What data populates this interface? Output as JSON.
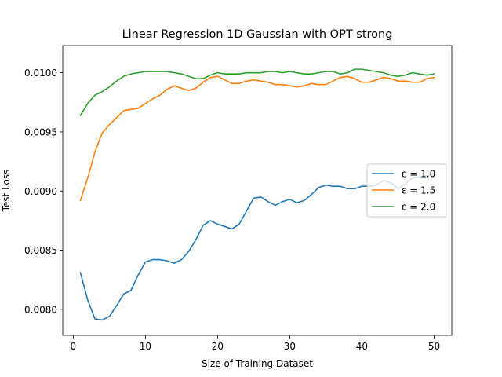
{
  "chart_data": {
    "type": "line",
    "title": "Linear Regression 1D Gaussian with OPT strong",
    "xlabel": "Size of Training Dataset",
    "ylabel": "Test Loss",
    "xlim": [
      -1.45,
      52.45
    ],
    "ylim": [
      0.00778,
      0.01023
    ],
    "xticks": [
      0,
      10,
      20,
      30,
      40,
      50
    ],
    "xtick_labels": [
      "0",
      "10",
      "20",
      "30",
      "40",
      "50"
    ],
    "yticks": [
      0.008,
      0.0085,
      0.009,
      0.0095,
      0.01
    ],
    "ytick_labels": [
      "0.0080",
      "0.0085",
      "0.0090",
      "0.0095",
      "0.0100"
    ],
    "grid": false,
    "legend_position": "center-right",
    "x": [
      1,
      2,
      3,
      4,
      5,
      6,
      7,
      8,
      9,
      10,
      11,
      12,
      13,
      14,
      15,
      16,
      17,
      18,
      19,
      20,
      21,
      22,
      23,
      24,
      25,
      26,
      27,
      28,
      29,
      30,
      31,
      32,
      33,
      34,
      35,
      36,
      37,
      38,
      39,
      40,
      41,
      42,
      43,
      44,
      45,
      46,
      47,
      48,
      49,
      50
    ],
    "series": [
      {
        "name": "ε = 1.0",
        "color": "#1f77b4",
        "values": [
          0.00831,
          0.00808,
          0.00792,
          0.00791,
          0.00794,
          0.00803,
          0.00813,
          0.00816,
          0.00829,
          0.0084,
          0.00842,
          0.00842,
          0.00841,
          0.00839,
          0.00842,
          0.00849,
          0.00859,
          0.00871,
          0.00875,
          0.00872,
          0.0087,
          0.00868,
          0.00872,
          0.00883,
          0.00894,
          0.00895,
          0.00891,
          0.00888,
          0.00891,
          0.00893,
          0.0089,
          0.00892,
          0.00897,
          0.00903,
          0.00905,
          0.00904,
          0.00904,
          0.00902,
          0.00902,
          0.00904,
          0.00904,
          0.00905,
          0.00909,
          0.00907,
          0.00902,
          0.00906,
          0.00911,
          0.00912,
          0.00913,
          0.00914
        ]
      },
      {
        "name": "ε = 1.5",
        "color": "#ff7f0e",
        "values": [
          0.00892,
          0.00911,
          0.00933,
          0.00949,
          0.00956,
          0.00962,
          0.00968,
          0.00969,
          0.0097,
          0.00974,
          0.00978,
          0.00981,
          0.00986,
          0.00989,
          0.00987,
          0.00985,
          0.00987,
          0.00992,
          0.00996,
          0.00997,
          0.00994,
          0.00991,
          0.00991,
          0.00993,
          0.00994,
          0.00993,
          0.00992,
          0.0099,
          0.0099,
          0.00989,
          0.00988,
          0.00989,
          0.00991,
          0.0099,
          0.0099,
          0.00993,
          0.00996,
          0.00997,
          0.00995,
          0.00992,
          0.00992,
          0.00994,
          0.00996,
          0.00995,
          0.00993,
          0.00993,
          0.00992,
          0.00992,
          0.00995,
          0.00996
        ]
      },
      {
        "name": "ε = 2.0",
        "color": "#2ca02c",
        "values": [
          0.00964,
          0.00974,
          0.00981,
          0.00984,
          0.00988,
          0.00993,
          0.00997,
          0.00999,
          0.01,
          0.01001,
          0.01001,
          0.01001,
          0.01001,
          0.01,
          0.00999,
          0.00997,
          0.00995,
          0.00995,
          0.00998,
          0.01,
          0.00999,
          0.00999,
          0.00999,
          0.01,
          0.01,
          0.01,
          0.01001,
          0.01001,
          0.01,
          0.01001,
          0.01,
          0.00999,
          0.00999,
          0.01,
          0.01001,
          0.01001,
          0.00999,
          0.01,
          0.01003,
          0.01003,
          0.01002,
          0.01001,
          0.01,
          0.00998,
          0.00997,
          0.00998,
          0.01,
          0.00999,
          0.00998,
          0.00999
        ]
      }
    ]
  }
}
